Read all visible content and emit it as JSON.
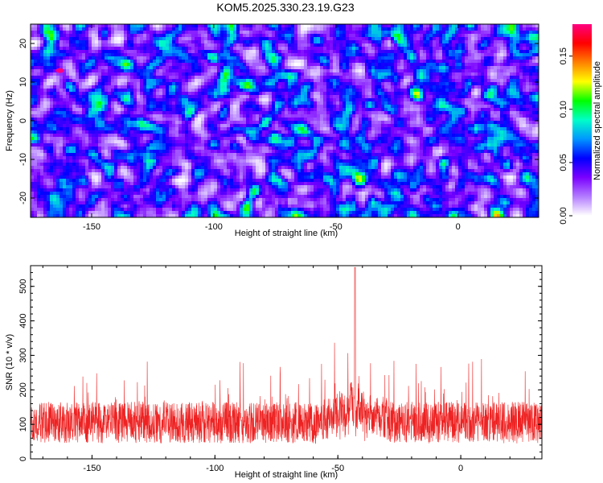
{
  "title": "KOM5.2025.330.23.19.G23",
  "chart_data": [
    {
      "type": "heatmap",
      "name": "spectrogram",
      "xlabel": "Height of straight line (km)",
      "ylabel": "Frequency (Hz)",
      "xlim": [
        -175,
        33
      ],
      "ylim": [
        -25,
        25
      ],
      "xticks": [
        "-150",
        "-100",
        "-50",
        "0"
      ],
      "xtick_values": [
        -150,
        -100,
        -50,
        0
      ],
      "yticks": [
        "20",
        "10",
        "0",
        "-10",
        "-20"
      ],
      "ytick_values": [
        20,
        10,
        0,
        -10,
        -20
      ],
      "colorbar": {
        "label": "Normalized spectral amplitude",
        "range": [
          0,
          0.18
        ],
        "ticks": [
          "0.00",
          "0.05",
          "0.10",
          "0.15"
        ],
        "tick_values": [
          0,
          0.05,
          0.1,
          0.15
        ],
        "colors": [
          "#ffffff",
          "#b37cff",
          "#7a00ff",
          "#0000ff",
          "#0096ff",
          "#00ffc8",
          "#00ff00",
          "#ffff00",
          "#ff8000",
          "#ff0000",
          "#ff0080"
        ]
      }
    },
    {
      "type": "line",
      "name": "snr-trace",
      "xlabel": "Height of straight line (km)",
      "ylabel": "SNR (10 * v/v)",
      "xlim": [
        -175,
        33
      ],
      "ylim": [
        0,
        560
      ],
      "xticks": [
        "-150",
        "-100",
        "-50",
        "0"
      ],
      "xtick_values": [
        -150,
        -100,
        -50,
        0
      ],
      "yticks": [
        "0",
        "100",
        "200",
        "300",
        "400",
        "500"
      ],
      "ytick_values": [
        0,
        100,
        200,
        300,
        400,
        500
      ],
      "color": "#ee2222",
      "peak": {
        "x": -43,
        "y": 555
      },
      "baseline_mean": 105
    }
  ]
}
